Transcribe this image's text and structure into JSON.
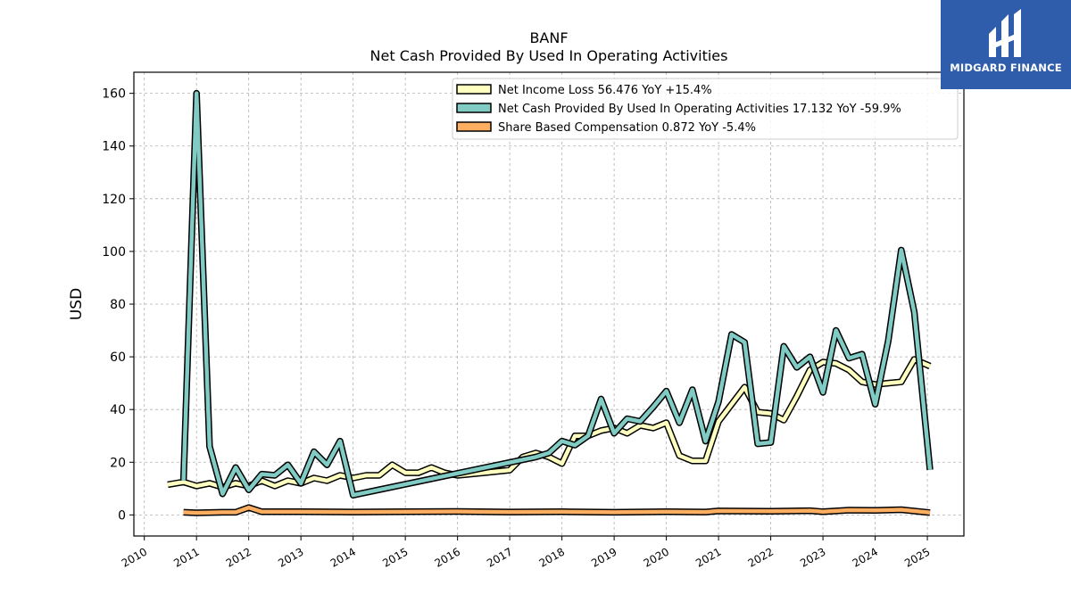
{
  "chart_data": {
    "type": "line",
    "title": "BANF",
    "subtitle": "Net Cash Provided By Used In Operating Activities",
    "ylabel": "USD",
    "xlabel": "",
    "xlim": [
      2009.8,
      2025.7
    ],
    "ylim": [
      -8,
      168
    ],
    "yticks": [
      0,
      20,
      40,
      60,
      80,
      100,
      120,
      140,
      160
    ],
    "xticks": [
      2010,
      2011,
      2012,
      2013,
      2014,
      2015,
      2016,
      2017,
      2018,
      2019,
      2020,
      2021,
      2022,
      2023,
      2024,
      2025
    ],
    "grid": true,
    "legend_position": "top-right",
    "series": [
      {
        "name": "Net Income Loss",
        "legend_label": "Net Income Loss  56.476 YoY +15.4%",
        "color": "#ffffbf",
        "points": [
          [
            2010.45,
            11.5
          ],
          [
            2010.75,
            12.5
          ],
          [
            2011.0,
            11.0
          ],
          [
            2011.25,
            12.0
          ],
          [
            2011.5,
            10.5
          ],
          [
            2011.75,
            12.0
          ],
          [
            2012.0,
            11.0
          ],
          [
            2012.25,
            13.0
          ],
          [
            2012.5,
            11.0
          ],
          [
            2012.75,
            13.0
          ],
          [
            2013.0,
            12.0
          ],
          [
            2013.25,
            14.0
          ],
          [
            2013.5,
            13.0
          ],
          [
            2013.75,
            15.0
          ],
          [
            2014.0,
            14.0
          ],
          [
            2014.25,
            15.0
          ],
          [
            2014.5,
            15.0
          ],
          [
            2014.75,
            19.0
          ],
          [
            2015.0,
            16.0
          ],
          [
            2015.25,
            16.0
          ],
          [
            2015.5,
            18.0
          ],
          [
            2015.75,
            16.0
          ],
          [
            2016.0,
            15.0
          ],
          [
            2016.5,
            16.0
          ],
          [
            2017.0,
            17.0
          ],
          [
            2017.25,
            22.0
          ],
          [
            2017.5,
            23.5
          ],
          [
            2017.75,
            22.0
          ],
          [
            2018.0,
            19.5
          ],
          [
            2018.25,
            30.0
          ],
          [
            2018.5,
            30.0
          ],
          [
            2018.75,
            32.0
          ],
          [
            2019.0,
            33.0
          ],
          [
            2019.25,
            31.0
          ],
          [
            2019.5,
            34.0
          ],
          [
            2019.75,
            33.0
          ],
          [
            2020.0,
            35.0
          ],
          [
            2020.25,
            22.5
          ],
          [
            2020.5,
            20.5
          ],
          [
            2020.75,
            20.5
          ],
          [
            2021.0,
            35.5
          ],
          [
            2021.25,
            42.0
          ],
          [
            2021.5,
            48.5
          ],
          [
            2021.75,
            39.0
          ],
          [
            2022.0,
            38.5
          ],
          [
            2022.25,
            36.0
          ],
          [
            2022.5,
            45.0
          ],
          [
            2022.75,
            55.0
          ],
          [
            2023.0,
            58.0
          ],
          [
            2023.25,
            57.5
          ],
          [
            2023.5,
            55.0
          ],
          [
            2023.75,
            50.5
          ],
          [
            2024.0,
            49.5
          ],
          [
            2024.25,
            50.0
          ],
          [
            2024.5,
            50.5
          ],
          [
            2024.75,
            59.0
          ],
          [
            2025.05,
            56.476
          ]
        ]
      },
      {
        "name": "Net Cash Provided By Used In Operating Activities",
        "legend_label": "Net Cash Provided By Used In Operating Activities  17.132 YoY -59.9%",
        "color": "#80cbc4",
        "points": [
          [
            2010.75,
            13.0
          ],
          [
            2011.0,
            160.0
          ],
          [
            2011.25,
            26.0
          ],
          [
            2011.5,
            8.0
          ],
          [
            2011.75,
            18.0
          ],
          [
            2012.0,
            9.5
          ],
          [
            2012.25,
            15.5
          ],
          [
            2012.5,
            15.0
          ],
          [
            2012.75,
            19.0
          ],
          [
            2013.0,
            12.0
          ],
          [
            2013.25,
            24.0
          ],
          [
            2013.5,
            19.0
          ],
          [
            2013.75,
            28.0
          ],
          [
            2014.0,
            7.5
          ],
          [
            2017.5,
            22.0
          ],
          [
            2017.75,
            23.5
          ],
          [
            2018.0,
            28.0
          ],
          [
            2018.25,
            26.5
          ],
          [
            2018.5,
            30.0
          ],
          [
            2018.75,
            44.0
          ],
          [
            2019.0,
            31.0
          ],
          [
            2019.25,
            36.5
          ],
          [
            2019.5,
            35.5
          ],
          [
            2019.75,
            41.0
          ],
          [
            2020.0,
            47.0
          ],
          [
            2020.25,
            35.0
          ],
          [
            2020.5,
            47.5
          ],
          [
            2020.75,
            28.0
          ],
          [
            2021.0,
            43.0
          ],
          [
            2021.25,
            68.5
          ],
          [
            2021.5,
            65.5
          ],
          [
            2021.75,
            27.0
          ],
          [
            2022.0,
            27.5
          ],
          [
            2022.25,
            64.0
          ],
          [
            2022.5,
            56.0
          ],
          [
            2022.75,
            60.0
          ],
          [
            2023.0,
            46.5
          ],
          [
            2023.25,
            70.0
          ],
          [
            2023.5,
            59.5
          ],
          [
            2023.75,
            61.0
          ],
          [
            2024.0,
            42.0
          ],
          [
            2024.25,
            66.0
          ],
          [
            2024.5,
            100.5
          ],
          [
            2024.75,
            77.0
          ],
          [
            2025.05,
            17.132
          ]
        ]
      },
      {
        "name": "Share Based Compensation",
        "legend_label": "Share Based Compensation  0.872 YoY -5.4%",
        "color": "#fdae61",
        "points": [
          [
            2010.75,
            1.0
          ],
          [
            2011.0,
            0.8
          ],
          [
            2011.5,
            1.0
          ],
          [
            2011.75,
            1.0
          ],
          [
            2012.0,
            2.8
          ],
          [
            2012.25,
            1.2
          ],
          [
            2013.0,
            1.2
          ],
          [
            2014.0,
            1.1
          ],
          [
            2015.0,
            1.2
          ],
          [
            2016.0,
            1.3
          ],
          [
            2017.0,
            1.1
          ],
          [
            2018.0,
            1.2
          ],
          [
            2019.0,
            1.0
          ],
          [
            2020.0,
            1.2
          ],
          [
            2020.75,
            1.1
          ],
          [
            2021.0,
            1.5
          ],
          [
            2022.0,
            1.4
          ],
          [
            2022.75,
            1.6
          ],
          [
            2023.0,
            1.2
          ],
          [
            2023.5,
            1.8
          ],
          [
            2024.0,
            1.7
          ],
          [
            2024.5,
            2.0
          ],
          [
            2025.05,
            0.872
          ]
        ]
      }
    ]
  },
  "logo": {
    "text": "MIDGARD FINANCE",
    "background": "#2f5cab"
  }
}
